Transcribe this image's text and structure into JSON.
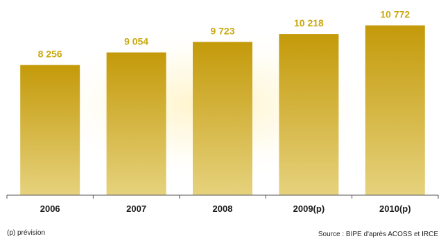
{
  "chart_data": {
    "type": "bar",
    "categories": [
      "2006",
      "2007",
      "2008",
      "2009(p)",
      "2010(p)"
    ],
    "values": [
      8256,
      9054,
      9723,
      10218,
      10772
    ],
    "value_labels": [
      "8 256",
      "9 054",
      "9 723",
      "10 218",
      "10 772"
    ],
    "title": "",
    "xlabel": "",
    "ylabel": "",
    "ylim": [
      0,
      11500
    ],
    "grid": false,
    "legend": "none",
    "colors": {
      "bar_top": "#c49a0a",
      "bar_bottom": "#e6d27d",
      "value_label": "#c9a80e",
      "glow": "#fff0b3"
    }
  },
  "footnote": "(p) prévision",
  "source": "Source : BIPE d'après ACOSS et IRCE"
}
